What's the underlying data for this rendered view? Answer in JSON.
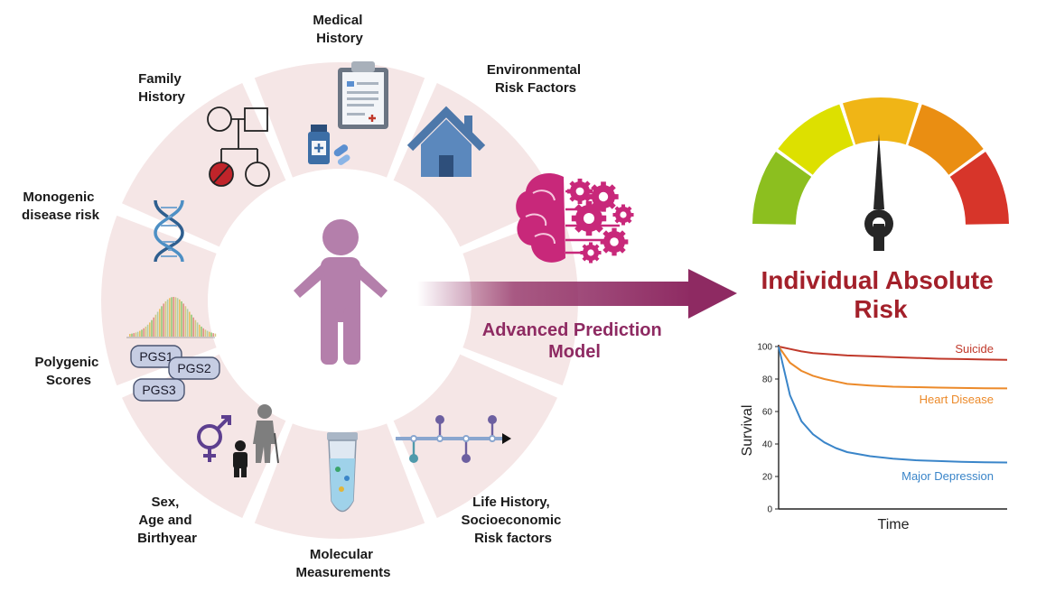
{
  "wheel": {
    "segments": {
      "medical_history": [
        "Medical",
        "History"
      ],
      "environmental": [
        "Environmental",
        "Risk Factors"
      ],
      "family_history": [
        "Family",
        "History"
      ],
      "monogenic": [
        "Monogenic",
        "disease risk"
      ],
      "polygenic": [
        "Polygenic",
        "Scores"
      ],
      "sex_age": [
        "Sex,",
        "Age and",
        "Birthyear"
      ],
      "molecular": [
        "Molecular",
        "Measurements"
      ],
      "life_history": [
        "Life History,",
        "Socioeconomic",
        "Risk factors"
      ]
    },
    "pgs_labels": [
      "PGS1",
      "PGS2",
      "PGS3"
    ]
  },
  "model": {
    "label": [
      "Advanced Prediction",
      "Model"
    ]
  },
  "risk": {
    "title": [
      "Individual Absolute",
      "Risk"
    ],
    "gauge_colors": [
      "#8cbf1f",
      "#dde000",
      "#f0b516",
      "#ea8e12",
      "#d7352a"
    ]
  },
  "chart_data": {
    "type": "line",
    "xlabel": "Time",
    "ylabel": "Survival",
    "ylim": [
      0,
      100
    ],
    "yticks": [
      0,
      20,
      40,
      60,
      80,
      100
    ],
    "x": [
      0,
      5,
      10,
      15,
      20,
      25,
      30,
      40,
      50,
      60,
      70,
      80,
      90,
      100
    ],
    "series": [
      {
        "name": "Suicide",
        "color": "#c0392b",
        "values": [
          100,
          98.5,
          97,
          96,
          95.5,
          95,
          94.5,
          94,
          93.5,
          93,
          92.5,
          92.3,
          92,
          91.8
        ]
      },
      {
        "name": "Heart Disease",
        "color": "#ec8a2a",
        "values": [
          100,
          90,
          85,
          82,
          80,
          78.5,
          77,
          76,
          75.3,
          75,
          74.7,
          74.5,
          74.3,
          74.2
        ]
      },
      {
        "name": "Major Depression",
        "color": "#3a85c9",
        "values": [
          100,
          70,
          54,
          46,
          41,
          37.5,
          35,
          32.5,
          31,
          30,
          29.5,
          29,
          28.8,
          28.6
        ]
      }
    ]
  }
}
